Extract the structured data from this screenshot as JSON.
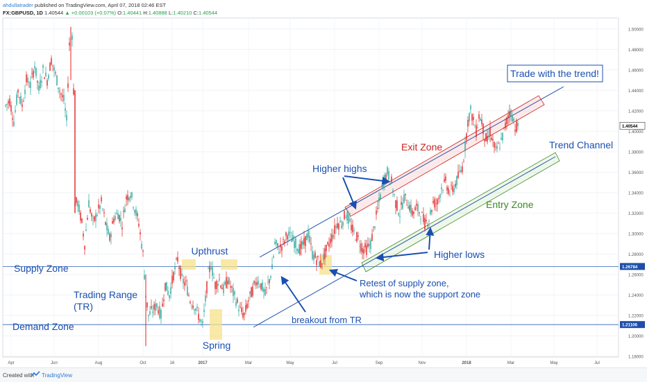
{
  "header": {
    "author": "ahdullatrader",
    "published": "published on TradingView.com, April 07, 2018 02:46 EST",
    "symbol": "FX:GBPUSD, 1D",
    "last": "1.40544",
    "change": "+0.00103 (+0.07%)",
    "o_label": "O:",
    "o_value": "1.40441",
    "h_label": "H:",
    "h_value": "1.40888",
    "l_label": "L:",
    "l_value": "1.40210",
    "c_label": "C:",
    "c_value": "1.40544"
  },
  "colors": {
    "up": "#26a69a",
    "down": "#e02020",
    "annotation_blue": "#1a4fb0",
    "exit_zone": "#cc2222",
    "entry_zone": "#3a8a20",
    "highlight": "#f5e28a",
    "level_line": "#2e62b8",
    "price_label_bg": "#1d4fa8"
  },
  "footer": {
    "created_with": "Created with",
    "brand": "TradingView",
    "logo_icon": "tradingview-logo-icon"
  },
  "chart_data": {
    "type": "candlestick",
    "y_axis": {
      "min": 1.18,
      "max": 1.51,
      "position": "right",
      "ticks": [
        "1.50000",
        "1.48000",
        "1.46000",
        "1.44000",
        "1.42000",
        "1.40000",
        "1.38000",
        "1.36000",
        "1.34000",
        "1.32000",
        "1.30000",
        "1.28000",
        "1.26000",
        "1.24000",
        "1.22000",
        "1.20000",
        "1.18000"
      ]
    },
    "x_axis": {
      "ticks": [
        {
          "label": "Apr",
          "i": 4
        },
        {
          "label": "Jun",
          "i": 35
        },
        {
          "label": "Aug",
          "i": 67
        },
        {
          "label": "Oct",
          "i": 99
        },
        {
          "label": "16",
          "i": 120
        },
        {
          "label": "2017",
          "i": 142
        },
        {
          "label": "Mar",
          "i": 175
        },
        {
          "label": "May",
          "i": 205
        },
        {
          "label": "Jul",
          "i": 237
        },
        {
          "label": "Sep",
          "i": 269
        },
        {
          "label": "Nov",
          "i": 300
        },
        {
          "label": "2018",
          "i": 332
        },
        {
          "label": "Mar",
          "i": 364
        },
        {
          "label": "May",
          "i": 395
        },
        {
          "label": "Jul",
          "i": 426
        }
      ]
    },
    "price_labels": [
      {
        "text": "1.40544",
        "value": 1.40544,
        "style": "last"
      },
      {
        "text": "1.26784",
        "value": 1.26784,
        "style": "level"
      },
      {
        "text": "1.21106",
        "value": 1.21106,
        "style": "level"
      }
    ],
    "levels": [
      {
        "name": "Supply Zone",
        "value": 1.26784
      },
      {
        "name": "Demand Zone",
        "value": 1.21106
      }
    ],
    "price_path": [
      [
        0,
        1.425
      ],
      [
        3,
        1.43
      ],
      [
        6,
        1.41
      ],
      [
        9,
        1.44
      ],
      [
        12,
        1.425
      ],
      [
        15,
        1.45
      ],
      [
        18,
        1.445
      ],
      [
        21,
        1.465
      ],
      [
        24,
        1.44
      ],
      [
        27,
        1.46
      ],
      [
        30,
        1.45
      ],
      [
        33,
        1.47
      ],
      [
        36,
        1.455
      ],
      [
        39,
        1.44
      ],
      [
        42,
        1.43
      ],
      [
        44,
        1.41
      ],
      [
        46,
        1.485
      ],
      [
        48,
        1.495
      ],
      [
        49,
        1.44
      ],
      [
        50,
        1.33
      ],
      [
        52,
        1.33
      ],
      [
        55,
        1.31
      ],
      [
        57,
        1.29
      ],
      [
        60,
        1.33
      ],
      [
        63,
        1.31
      ],
      [
        66,
        1.32
      ],
      [
        69,
        1.33
      ],
      [
        72,
        1.31
      ],
      [
        75,
        1.295
      ],
      [
        78,
        1.315
      ],
      [
        81,
        1.32
      ],
      [
        84,
        1.31
      ],
      [
        87,
        1.335
      ],
      [
        90,
        1.34
      ],
      [
        93,
        1.325
      ],
      [
        96,
        1.31
      ],
      [
        99,
        1.28
      ],
      [
        101,
        1.24
      ],
      [
        103,
        1.22
      ],
      [
        106,
        1.225
      ],
      [
        109,
        1.23
      ],
      [
        112,
        1.22
      ],
      [
        115,
        1.25
      ],
      [
        118,
        1.24
      ],
      [
        121,
        1.26
      ],
      [
        124,
        1.275
      ],
      [
        127,
        1.255
      ],
      [
        130,
        1.25
      ],
      [
        133,
        1.235
      ],
      [
        136,
        1.23
      ],
      [
        139,
        1.22
      ],
      [
        142,
        1.21
      ],
      [
        144,
        1.235
      ],
      [
        146,
        1.26
      ],
      [
        148,
        1.27
      ],
      [
        151,
        1.25
      ],
      [
        154,
        1.255
      ],
      [
        157,
        1.245
      ],
      [
        160,
        1.255
      ],
      [
        163,
        1.245
      ],
      [
        166,
        1.235
      ],
      [
        169,
        1.225
      ],
      [
        172,
        1.22
      ],
      [
        175,
        1.235
      ],
      [
        178,
        1.245
      ],
      [
        181,
        1.255
      ],
      [
        184,
        1.25
      ],
      [
        187,
        1.24
      ],
      [
        190,
        1.255
      ],
      [
        192,
        1.265
      ],
      [
        194,
        1.29
      ],
      [
        197,
        1.285
      ],
      [
        200,
        1.29
      ],
      [
        203,
        1.3
      ],
      [
        206,
        1.295
      ],
      [
        209,
        1.29
      ],
      [
        212,
        1.285
      ],
      [
        215,
        1.29
      ],
      [
        218,
        1.3
      ],
      [
        221,
        1.28
      ],
      [
        224,
        1.275
      ],
      [
        227,
        1.27
      ],
      [
        230,
        1.28
      ],
      [
        233,
        1.29
      ],
      [
        236,
        1.3
      ],
      [
        239,
        1.31
      ],
      [
        242,
        1.31
      ],
      [
        245,
        1.32
      ],
      [
        248,
        1.31
      ],
      [
        251,
        1.3
      ],
      [
        254,
        1.295
      ],
      [
        257,
        1.285
      ],
      [
        260,
        1.285
      ],
      [
        263,
        1.29
      ],
      [
        266,
        1.31
      ],
      [
        269,
        1.33
      ],
      [
        272,
        1.35
      ],
      [
        275,
        1.36
      ],
      [
        278,
        1.35
      ],
      [
        281,
        1.33
      ],
      [
        284,
        1.32
      ],
      [
        287,
        1.335
      ],
      [
        290,
        1.33
      ],
      [
        293,
        1.32
      ],
      [
        296,
        1.325
      ],
      [
        299,
        1.32
      ],
      [
        302,
        1.31
      ],
      [
        305,
        1.315
      ],
      [
        308,
        1.33
      ],
      [
        311,
        1.33
      ],
      [
        314,
        1.345
      ],
      [
        317,
        1.35
      ],
      [
        320,
        1.34
      ],
      [
        323,
        1.345
      ],
      [
        326,
        1.355
      ],
      [
        329,
        1.365
      ],
      [
        331,
        1.385
      ],
      [
        333,
        1.41
      ],
      [
        335,
        1.42
      ],
      [
        337,
        1.41
      ],
      [
        339,
        1.4
      ],
      [
        341,
        1.415
      ],
      [
        343,
        1.41
      ],
      [
        345,
        1.395
      ],
      [
        347,
        1.39
      ],
      [
        349,
        1.4
      ],
      [
        351,
        1.39
      ],
      [
        353,
        1.38
      ],
      [
        355,
        1.385
      ],
      [
        357,
        1.39
      ],
      [
        359,
        1.4
      ],
      [
        361,
        1.41
      ],
      [
        363,
        1.42
      ],
      [
        365,
        1.415
      ],
      [
        367,
        1.405
      ],
      [
        369,
        1.405
      ]
    ],
    "candles_count": 370,
    "annotations": [
      {
        "id": "upthrust",
        "text": "Upthrust"
      },
      {
        "id": "supply-zone",
        "text": "Supply Zone"
      },
      {
        "id": "trading-range",
        "text": "Trading Range"
      },
      {
        "id": "tr",
        "text": "(TR)"
      },
      {
        "id": "demand-zone",
        "text": "Demand Zone"
      },
      {
        "id": "spring",
        "text": "Spring"
      },
      {
        "id": "breakout",
        "text": "breakout from TR"
      },
      {
        "id": "retest-1",
        "text": "Retest of supply zone,"
      },
      {
        "id": "retest-2",
        "text": "which is now the support zone"
      },
      {
        "id": "higher-highs",
        "text": "Higher highs"
      },
      {
        "id": "higher-lows",
        "text": "Higher lows"
      },
      {
        "id": "exit-zone",
        "text": "Exit Zone"
      },
      {
        "id": "entry-zone",
        "text": "Entry Zone"
      },
      {
        "id": "trend-channel",
        "text": "Trend Channel"
      },
      {
        "id": "trade-with-trend",
        "text": "Trade with the trend!"
      }
    ]
  }
}
